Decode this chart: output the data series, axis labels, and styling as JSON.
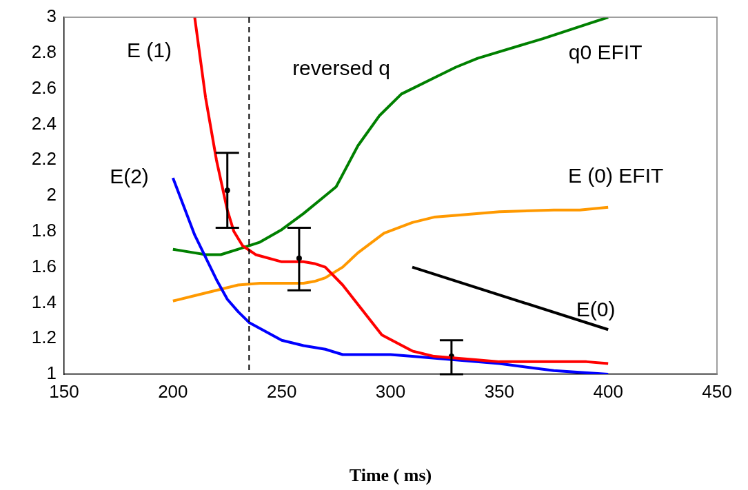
{
  "chart_data": {
    "type": "line",
    "xlabel": "Time ( ms)",
    "xlim": [
      150,
      450
    ],
    "xticks": [
      150,
      200,
      250,
      300,
      350,
      400,
      450
    ],
    "ylim": [
      1,
      3
    ],
    "yticks": [
      1,
      1.2,
      1.4,
      1.6,
      1.8,
      2,
      2.2,
      2.4,
      2.6,
      2.8,
      3
    ],
    "grid": false,
    "legend": false,
    "marker": "none",
    "line_style": "solid",
    "annotations": [
      "reversed q"
    ],
    "ref_lines": [
      {
        "axis": "x",
        "value": 235,
        "color": "#000000",
        "line_style": "dashed"
      }
    ],
    "series": [
      {
        "name": "E (1)",
        "color": "#ff0000",
        "x": [
          210,
          215,
          220,
          225,
          228,
          232,
          238,
          250,
          260,
          265,
          270,
          278,
          287,
          296,
          310,
          320,
          340,
          350,
          390,
          400
        ],
        "values": [
          3.0,
          2.55,
          2.2,
          1.92,
          1.8,
          1.72,
          1.67,
          1.63,
          1.63,
          1.62,
          1.6,
          1.5,
          1.36,
          1.22,
          1.13,
          1.1,
          1.08,
          1.07,
          1.07,
          1.06
        ]
      },
      {
        "name": "E(2)",
        "color": "#0000ff",
        "x": [
          200,
          210,
          220,
          225,
          230,
          235,
          250,
          260,
          270,
          278,
          300,
          310,
          350,
          375,
          400
        ],
        "values": [
          2.1,
          1.78,
          1.53,
          1.42,
          1.35,
          1.29,
          1.19,
          1.16,
          1.14,
          1.11,
          1.11,
          1.1,
          1.06,
          1.02,
          1.0
        ]
      },
      {
        "name": "q0 EFIT",
        "color": "#008000",
        "x": [
          200,
          210,
          215,
          222,
          230,
          240,
          250,
          260,
          270,
          275,
          285,
          295,
          305,
          310,
          320,
          330,
          340,
          370,
          390,
          400
        ],
        "values": [
          1.7,
          1.68,
          1.67,
          1.67,
          1.7,
          1.74,
          1.81,
          1.9,
          2.0,
          2.05,
          2.28,
          2.45,
          2.57,
          2.6,
          2.66,
          2.72,
          2.77,
          2.88,
          2.96,
          3.0
        ]
      },
      {
        "name": "E (0) EFIT",
        "color": "#ff9900",
        "x": [
          200,
          210,
          220,
          230,
          240,
          250,
          260,
          265,
          270,
          278,
          285,
          297,
          310,
          320,
          330,
          350,
          375,
          387,
          400
        ],
        "values": [
          1.41,
          1.44,
          1.47,
          1.5,
          1.51,
          1.51,
          1.51,
          1.52,
          1.54,
          1.6,
          1.68,
          1.79,
          1.85,
          1.88,
          1.89,
          1.91,
          1.92,
          1.92,
          1.935
        ]
      },
      {
        "name": "E(0)",
        "color": "#000000",
        "x": [
          310,
          400
        ],
        "values": [
          1.6,
          1.25
        ]
      },
      {
        "type": "scatter",
        "marker": "circle",
        "color": "#000000",
        "x": [
          225,
          258,
          328
        ],
        "values": [
          2.03,
          1.65,
          1.1
        ],
        "errors": [
          [
            1.82,
            2.24
          ],
          [
            1.47,
            1.82
          ],
          [
            1.0,
            1.19
          ]
        ]
      }
    ]
  }
}
